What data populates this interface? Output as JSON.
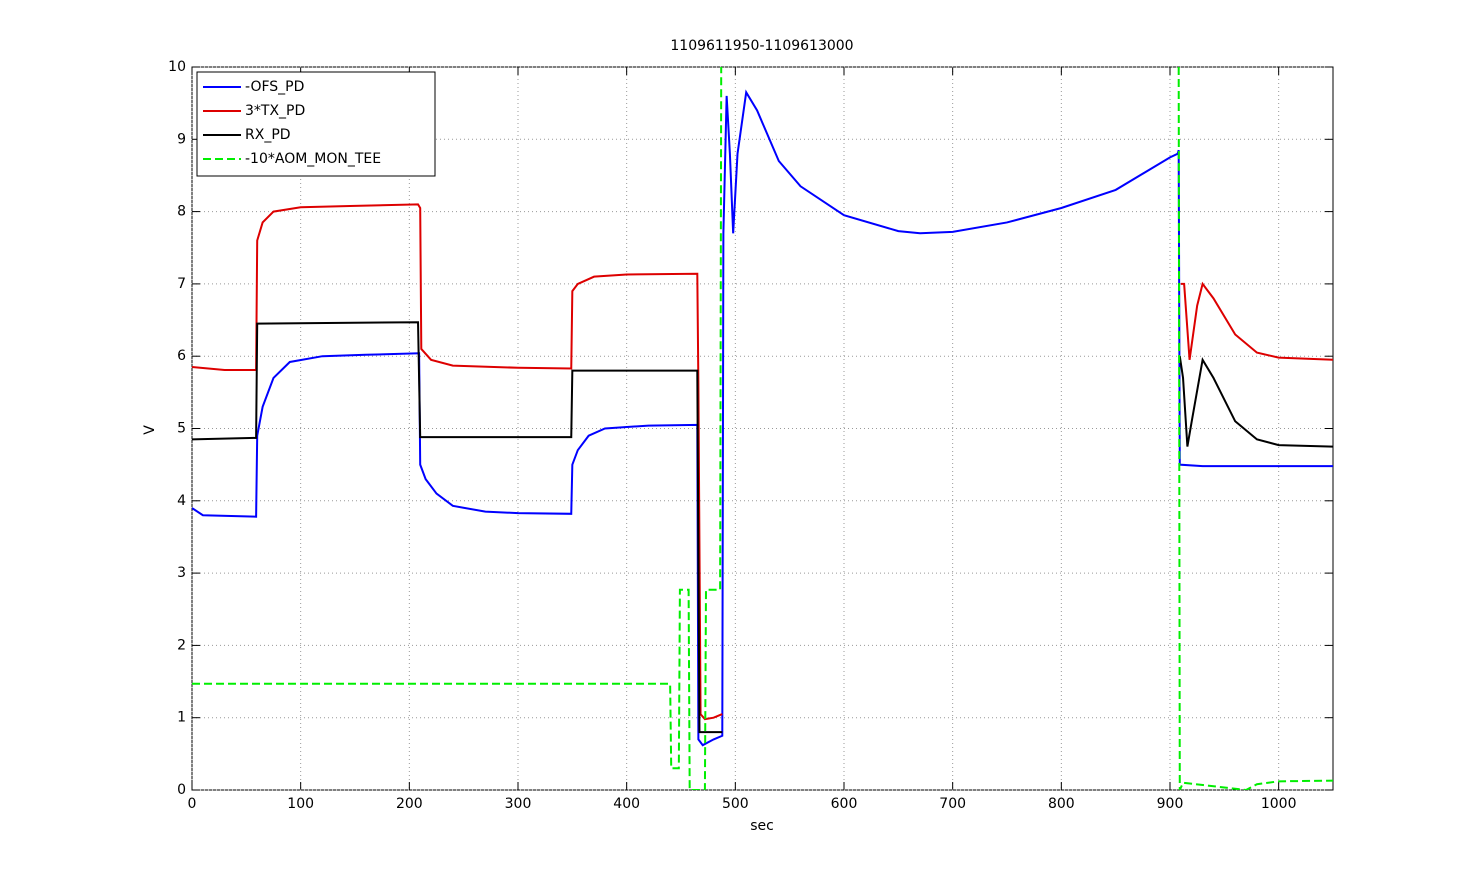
{
  "chart_data": {
    "type": "line",
    "title": "1109611950-1109613000",
    "xlabel": "sec",
    "ylabel": "V",
    "xlim": [
      0,
      1050
    ],
    "ylim": [
      0,
      10
    ],
    "xticks": [
      0,
      100,
      200,
      300,
      400,
      500,
      600,
      700,
      800,
      900,
      1000
    ],
    "yticks": [
      0,
      1,
      2,
      3,
      4,
      5,
      6,
      7,
      8,
      9,
      10
    ],
    "grid": true,
    "legend": "upper left",
    "series": [
      {
        "name": "-OFS_PD",
        "color": "#0000ff",
        "dash": false,
        "x": [
          0,
          10,
          59,
          60,
          65,
          75,
          90,
          120,
          160,
          209,
          210,
          215,
          225,
          240,
          270,
          300,
          349,
          350,
          355,
          365,
          380,
          420,
          465,
          466,
          470,
          480,
          488,
          489,
          492,
          495,
          498,
          502,
          510,
          520,
          540,
          560,
          600,
          650,
          670,
          700,
          750,
          800,
          850,
          900,
          907,
          908,
          909,
          930,
          1050
        ],
        "values": [
          3.9,
          3.8,
          3.78,
          4.9,
          5.3,
          5.7,
          5.92,
          6.0,
          6.02,
          6.04,
          4.5,
          4.3,
          4.1,
          3.93,
          3.85,
          3.83,
          3.82,
          4.5,
          4.7,
          4.9,
          5.0,
          5.04,
          5.05,
          0.7,
          0.62,
          0.7,
          0.75,
          7.7,
          9.6,
          8.8,
          7.7,
          8.8,
          9.65,
          9.4,
          8.7,
          8.35,
          7.95,
          7.73,
          7.7,
          7.72,
          7.85,
          8.05,
          8.3,
          8.75,
          8.8,
          8.85,
          4.5,
          4.48,
          4.48
        ]
      },
      {
        "name": "3*TX_PD",
        "color": "#dd0000",
        "dash": false,
        "x": [
          0,
          30,
          59,
          60,
          65,
          75,
          100,
          150,
          208,
          210,
          211,
          220,
          240,
          300,
          349,
          350,
          355,
          370,
          400,
          465,
          466,
          468,
          472,
          480,
          488,
          489,
          910,
          913,
          918,
          925,
          930,
          940,
          960,
          980,
          1000,
          1050
        ],
        "values": [
          5.85,
          5.81,
          5.81,
          7.6,
          7.85,
          8.0,
          8.06,
          8.08,
          8.1,
          8.05,
          6.1,
          5.95,
          5.87,
          5.84,
          5.83,
          6.9,
          7.0,
          7.1,
          7.13,
          7.14,
          5.6,
          1.05,
          0.98,
          1.0,
          1.05,
          null,
          7.0,
          7.0,
          5.95,
          6.7,
          7.0,
          6.8,
          6.3,
          6.05,
          5.98,
          5.95
        ]
      },
      {
        "name": "RX_PD",
        "color": "#000000",
        "dash": false,
        "x": [
          0,
          59,
          60,
          208,
          210,
          349,
          350,
          465,
          466,
          467,
          488,
          489,
          909,
          912,
          916,
          920,
          930,
          940,
          960,
          980,
          1000,
          1050
        ],
        "values": [
          4.85,
          4.87,
          6.45,
          6.47,
          4.88,
          4.88,
          5.8,
          5.8,
          3.2,
          0.8,
          0.8,
          null,
          6.0,
          5.7,
          4.75,
          5.1,
          5.95,
          5.7,
          5.1,
          4.85,
          4.77,
          4.75
        ]
      },
      {
        "name": "-10*AOM_MON_TEE",
        "color": "#00ee00",
        "dash": true,
        "x": [
          0,
          440,
          441,
          448,
          449,
          457,
          458,
          472,
          473,
          486,
          487,
          488,
          908,
          909,
          912,
          970,
          980,
          1000,
          1050
        ],
        "values": [
          1.47,
          1.47,
          0.3,
          0.3,
          2.77,
          2.77,
          0,
          0,
          2.77,
          2.77,
          10,
          null,
          10,
          0,
          0.1,
          0,
          0.08,
          0.12,
          0.13
        ]
      }
    ]
  }
}
